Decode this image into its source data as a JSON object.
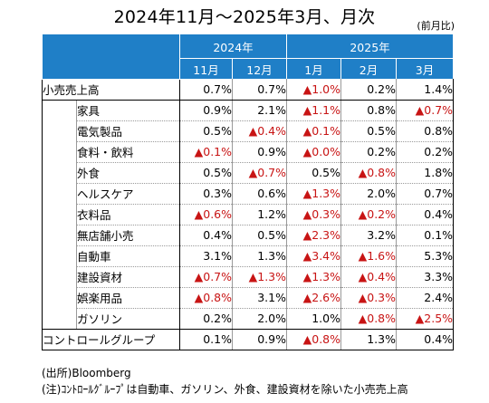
{
  "title": "2024年11月～2025年3月、月次",
  "unit_label": "(前月比)",
  "years": [
    {
      "label": "2024年"
    },
    {
      "label": "2025年"
    }
  ],
  "months": [
    "11月",
    "12月",
    "1月",
    "2月",
    "3月"
  ],
  "rows": [
    {
      "label": "小売売上高",
      "level": 0,
      "values": [
        {
          "text": "0.7%",
          "negative": false
        },
        {
          "text": "0.7%",
          "negative": false
        },
        {
          "text": "▲1.0%",
          "negative": true
        },
        {
          "text": "0.2%",
          "negative": false
        },
        {
          "text": "1.4%",
          "negative": false
        }
      ]
    },
    {
      "label": "家具",
      "level": 1,
      "values": [
        {
          "text": "0.9%",
          "negative": false
        },
        {
          "text": "2.1%",
          "negative": false
        },
        {
          "text": "▲1.1%",
          "negative": true
        },
        {
          "text": "0.8%",
          "negative": false
        },
        {
          "text": "▲0.7%",
          "negative": true
        }
      ]
    },
    {
      "label": "電気製品",
      "level": 1,
      "values": [
        {
          "text": "0.5%",
          "negative": false
        },
        {
          "text": "▲0.4%",
          "negative": true
        },
        {
          "text": "▲0.1%",
          "negative": true
        },
        {
          "text": "0.5%",
          "negative": false
        },
        {
          "text": "0.8%",
          "negative": false
        }
      ]
    },
    {
      "label": "食料・飲料",
      "level": 1,
      "values": [
        {
          "text": "▲0.1%",
          "negative": true
        },
        {
          "text": "0.9%",
          "negative": false
        },
        {
          "text": "▲0.0%",
          "negative": true
        },
        {
          "text": "0.2%",
          "negative": false
        },
        {
          "text": "0.2%",
          "negative": false
        }
      ]
    },
    {
      "label": "外食",
      "level": 1,
      "values": [
        {
          "text": "0.5%",
          "negative": false
        },
        {
          "text": "▲0.7%",
          "negative": true
        },
        {
          "text": "0.5%",
          "negative": false
        },
        {
          "text": "▲0.8%",
          "negative": true
        },
        {
          "text": "1.8%",
          "negative": false
        }
      ]
    },
    {
      "label": "ヘルスケア",
      "level": 1,
      "values": [
        {
          "text": "0.3%",
          "negative": false
        },
        {
          "text": "0.6%",
          "negative": false
        },
        {
          "text": "▲1.3%",
          "negative": true
        },
        {
          "text": "2.0%",
          "negative": false
        },
        {
          "text": "0.7%",
          "negative": false
        }
      ]
    },
    {
      "label": "衣料品",
      "level": 1,
      "values": [
        {
          "text": "▲0.6%",
          "negative": true
        },
        {
          "text": "1.2%",
          "negative": false
        },
        {
          "text": "▲0.3%",
          "negative": true
        },
        {
          "text": "▲0.2%",
          "negative": true
        },
        {
          "text": "0.4%",
          "negative": false
        }
      ]
    },
    {
      "label": "無店舗小売",
      "level": 1,
      "values": [
        {
          "text": "0.4%",
          "negative": false
        },
        {
          "text": "0.5%",
          "negative": false
        },
        {
          "text": "▲2.3%",
          "negative": true
        },
        {
          "text": "3.2%",
          "negative": false
        },
        {
          "text": "0.1%",
          "negative": false
        }
      ]
    },
    {
      "label": "自動車",
      "level": 1,
      "values": [
        {
          "text": "3.1%",
          "negative": false
        },
        {
          "text": "1.3%",
          "negative": false
        },
        {
          "text": "▲3.4%",
          "negative": true
        },
        {
          "text": "▲1.6%",
          "negative": true
        },
        {
          "text": "5.3%",
          "negative": false
        }
      ]
    },
    {
      "label": "建設資材",
      "level": 1,
      "values": [
        {
          "text": "▲0.7%",
          "negative": true
        },
        {
          "text": "▲1.3%",
          "negative": true
        },
        {
          "text": "▲1.3%",
          "negative": true
        },
        {
          "text": "▲0.4%",
          "negative": true
        },
        {
          "text": "3.3%",
          "negative": false
        }
      ]
    },
    {
      "label": "娯楽用品",
      "level": 1,
      "values": [
        {
          "text": "▲0.8%",
          "negative": true
        },
        {
          "text": "3.1%",
          "negative": false
        },
        {
          "text": "▲2.6%",
          "negative": true
        },
        {
          "text": "▲0.3%",
          "negative": true
        },
        {
          "text": "2.4%",
          "negative": false
        }
      ]
    },
    {
      "label": "ガソリン",
      "level": 1,
      "values": [
        {
          "text": "0.2%",
          "negative": false
        },
        {
          "text": "2.0%",
          "negative": false
        },
        {
          "text": "1.0%",
          "negative": false
        },
        {
          "text": "▲0.8%",
          "negative": true
        },
        {
          "text": "▲2.5%",
          "negative": true
        }
      ]
    },
    {
      "label": "コントロールグループ",
      "level": 0,
      "values": [
        {
          "text": "0.1%",
          "negative": false
        },
        {
          "text": "0.9%",
          "negative": false
        },
        {
          "text": "▲0.8%",
          "negative": true
        },
        {
          "text": "1.3%",
          "negative": false
        },
        {
          "text": "0.4%",
          "negative": false
        }
      ]
    }
  ],
  "notes": [
    "(出所)Bloomberg",
    "(注)ｺﾝﾄﾛｰﾙｸﾞﾙｰﾌﾟは自動車、ガソリン、外食、建設資材を除いた小売売上高"
  ],
  "colors": {
    "header_bg": "#1f7fc7",
    "header_text": "#ffffff",
    "negative_text": "#c81414"
  }
}
